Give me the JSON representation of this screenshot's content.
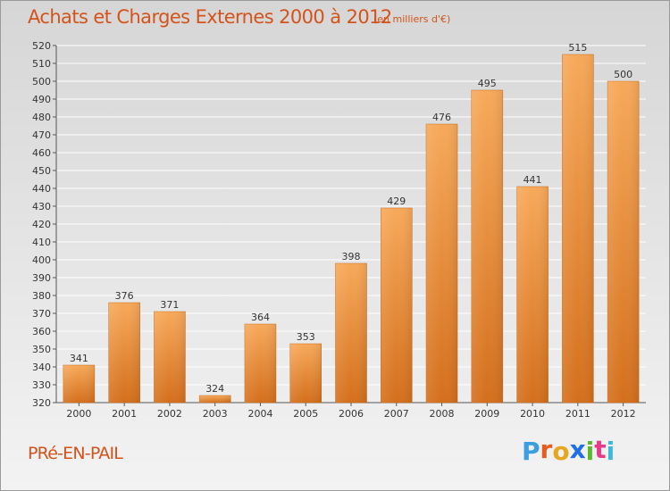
{
  "header": {
    "title": "Achats et Charges Externes 2000 à 2012",
    "subtitle": "(en milliers d'€)"
  },
  "footer": {
    "place": "PRé-EN-PAIL",
    "logo": "Proxiti"
  },
  "colors": {
    "title": "#d4531b",
    "bar_light": "#f7a95a",
    "bar_dark": "#d46f1c",
    "logo_letters": [
      "#3b9ee0",
      "#e85c1e",
      "#e8a51e",
      "#1e6fe8",
      "#5cb82e",
      "#e83b8a",
      "#3bb8e0"
    ]
  },
  "chart_data": {
    "type": "bar",
    "categories": [
      "2000",
      "2001",
      "2002",
      "2003",
      "2004",
      "2005",
      "2006",
      "2007",
      "2008",
      "2009",
      "2010",
      "2011",
      "2012"
    ],
    "values": [
      341,
      376,
      371,
      324,
      364,
      353,
      398,
      429,
      476,
      495,
      441,
      515,
      500
    ],
    "title": "Achats et Charges Externes 2000 à 2012",
    "subtitle": "(en milliers d'€)",
    "ylim": [
      320,
      520
    ],
    "yticks": [
      320,
      330,
      340,
      350,
      360,
      370,
      380,
      390,
      400,
      410,
      420,
      430,
      440,
      450,
      460,
      470,
      480,
      490,
      500,
      510,
      520
    ],
    "grid": true,
    "legend": "none"
  }
}
